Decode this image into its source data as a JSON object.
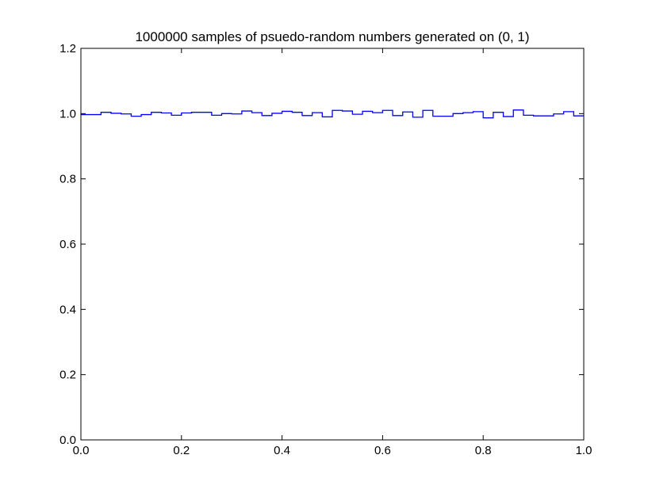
{
  "chart_data": {
    "type": "line",
    "drawstyle": "steps-post",
    "title": "1000000 samples of psuedo-random numbers generated on (0, 1)",
    "xlabel": "",
    "ylabel": "",
    "xlim": [
      0.0,
      1.0
    ],
    "ylim": [
      0.0,
      1.2
    ],
    "x_ticks": [
      "0.0",
      "0.2",
      "0.4",
      "0.6",
      "0.8",
      "1.0"
    ],
    "y_ticks": [
      "0.0",
      "0.2",
      "0.4",
      "0.6",
      "0.8",
      "1.0",
      "1.2"
    ],
    "x_tick_values": [
      0.0,
      0.2,
      0.4,
      0.6,
      0.8,
      1.0
    ],
    "y_tick_values": [
      0.0,
      0.2,
      0.4,
      0.6,
      0.8,
      1.0,
      1.2
    ],
    "grid": false,
    "legend": "none",
    "series": [
      {
        "color": "#0000ff",
        "bin_width": 0.02,
        "x": [
          0.0,
          0.02,
          0.04,
          0.06,
          0.08,
          0.1,
          0.12,
          0.14,
          0.16,
          0.18,
          0.2,
          0.22,
          0.24,
          0.26,
          0.28,
          0.3,
          0.32,
          0.34,
          0.36,
          0.38,
          0.4,
          0.42,
          0.44,
          0.46,
          0.48,
          0.5,
          0.52,
          0.54,
          0.56,
          0.58,
          0.6,
          0.62,
          0.64,
          0.66,
          0.68,
          0.7,
          0.72,
          0.74,
          0.76,
          0.78,
          0.8,
          0.82,
          0.84,
          0.86,
          0.88,
          0.9,
          0.92,
          0.94,
          0.96,
          0.98
        ],
        "values": [
          0.997,
          0.997,
          1.004,
          1.001,
          0.999,
          0.992,
          0.997,
          1.004,
          1.002,
          0.995,
          1.002,
          1.004,
          1.004,
          0.995,
          1.0,
          0.999,
          1.008,
          1.003,
          0.994,
          1.001,
          1.007,
          1.004,
          0.994,
          1.003,
          0.99,
          1.01,
          1.008,
          0.998,
          1.007,
          1.003,
          1.01,
          0.994,
          1.005,
          0.989,
          1.01,
          0.992,
          0.992,
          1.0,
          1.003,
          1.006,
          0.987,
          1.004,
          0.991,
          1.011,
          0.995,
          0.993,
          0.993,
          0.999,
          1.006,
          0.993
        ]
      }
    ]
  }
}
